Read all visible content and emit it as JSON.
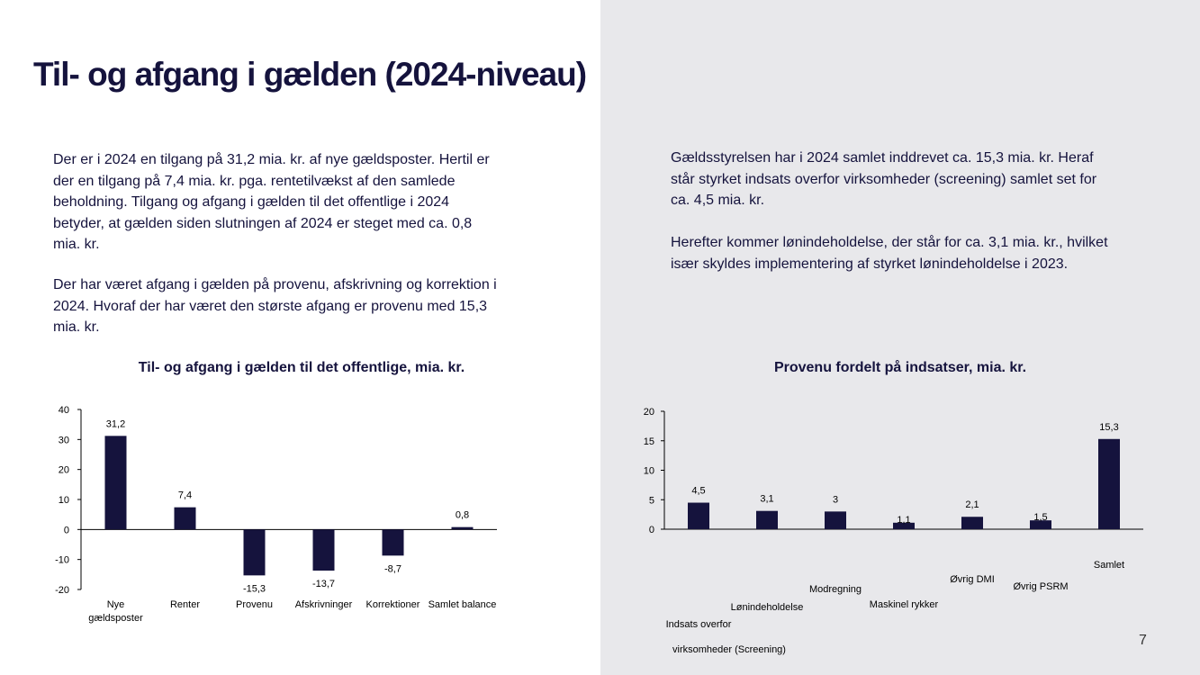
{
  "title": "Til- og afgang i gælden (2024-niveau)",
  "left_text": {
    "p1": [
      "Der er i 2024 en tilgang på 31,2 mia. kr. af nye gældsposter. Hertil er",
      "der en tilgang på 7,4 mia. kr. pga. rentetilvækst af den samlede",
      "beholdning. Tilgang og afgang i gælden til det offentlige i 2024",
      "betyder, at gælden siden slutningen af 2024 er steget med ca. 0,8",
      "mia. kr."
    ],
    "p2": [
      "Der har været afgang i gælden på provenu, afskrivning og korrektion i",
      "2024. Hvoraf der har været den største afgang er provenu med 15,3",
      "mia. kr."
    ]
  },
  "right_text": {
    "p1": [
      "Gældsstyrelsen har i 2024 samlet inddrevet ca. 15,3 mia. kr. Heraf",
      "står styrket indsats overfor virksomheder (screening) samlet set for",
      "ca. 4,5 mia. kr."
    ],
    "p2": [
      "Herefter kommer lønindeholdelse, der står for ca. 3,1 mia. kr., hvilket",
      "især skyldes implementering af styrket lønindeholdelse i 2023."
    ]
  },
  "page_number": "7",
  "colors": {
    "bar": "#15133d",
    "text": "#15133d",
    "right_panel": "#e8e8eb"
  },
  "chart_data": [
    {
      "type": "bar",
      "title": "Til- og afgang i gælden til det offentlige, mia. kr.",
      "categories": [
        [
          "Nye",
          "gældsposter"
        ],
        [
          "Renter"
        ],
        [
          "Provenu"
        ],
        [
          "Afskrivninger"
        ],
        [
          "Korrektioner"
        ],
        [
          "Samlet balance"
        ]
      ],
      "values": [
        31.2,
        7.4,
        -15.3,
        -13.7,
        -8.7,
        0.8
      ],
      "data_labels": [
        "31,2",
        "7,4",
        "-15,3",
        "-13,7",
        "-8,7",
        "0,8"
      ],
      "ylim": [
        -20,
        40
      ],
      "yticks": [
        40,
        30,
        20,
        10,
        0,
        -10,
        -20
      ],
      "ytick_labels": [
        "40",
        "30",
        "20",
        "10",
        "0",
        "-10",
        "-20"
      ],
      "grid": false
    },
    {
      "type": "bar",
      "title": "Provenu fordelt på indsatser, mia. kr.",
      "categories": [
        [
          "Indsats overfor",
          "virksomheder (Screening)"
        ],
        [
          "Lønindeholdelse"
        ],
        [
          "Modregning"
        ],
        [
          "Maskinel rykker"
        ],
        [
          "Øvrig DMI"
        ],
        [
          "Øvrig PSRM"
        ],
        [
          "Samlet"
        ]
      ],
      "values": [
        4.5,
        3.1,
        3.0,
        1.1,
        2.1,
        1.5,
        15.3
      ],
      "data_labels": [
        "4,5",
        "3,1",
        "3",
        "1,1",
        "2,1",
        "1,5",
        "15,3"
      ],
      "ylim": [
        0,
        20
      ],
      "yticks": [
        20,
        15,
        10,
        5,
        0
      ],
      "ytick_labels": [
        "20",
        "15",
        "10",
        "5",
        "0"
      ],
      "grid": false
    }
  ]
}
